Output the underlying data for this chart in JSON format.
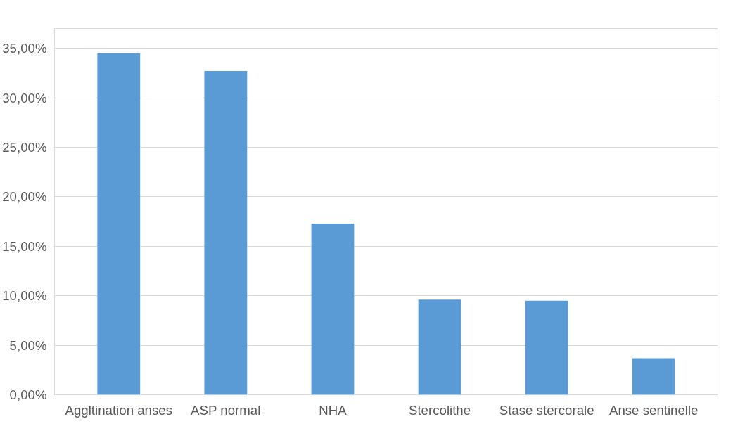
{
  "chart_data": {
    "type": "bar",
    "categories": [
      "Aggltination anses",
      "ASP normal",
      "NHA",
      "Stercolithe",
      "Stase stercorale",
      "Anse sentinelle"
    ],
    "values": [
      34.5,
      32.7,
      17.3,
      9.6,
      9.5,
      3.7
    ],
    "color": "#5b9bd5",
    "ylim": [
      0,
      37
    ],
    "yticks": [
      {
        "value": 0,
        "label": "0,00%"
      },
      {
        "value": 5,
        "label": "5,00%"
      },
      {
        "value": 10,
        "label": "10,00%"
      },
      {
        "value": 15,
        "label": "15,00%"
      },
      {
        "value": 20,
        "label": "20,00%"
      },
      {
        "value": 25,
        "label": "25,00%"
      },
      {
        "value": 30,
        "label": "30,00%"
      },
      {
        "value": 35,
        "label": "35,00%"
      }
    ],
    "grid": "y"
  }
}
